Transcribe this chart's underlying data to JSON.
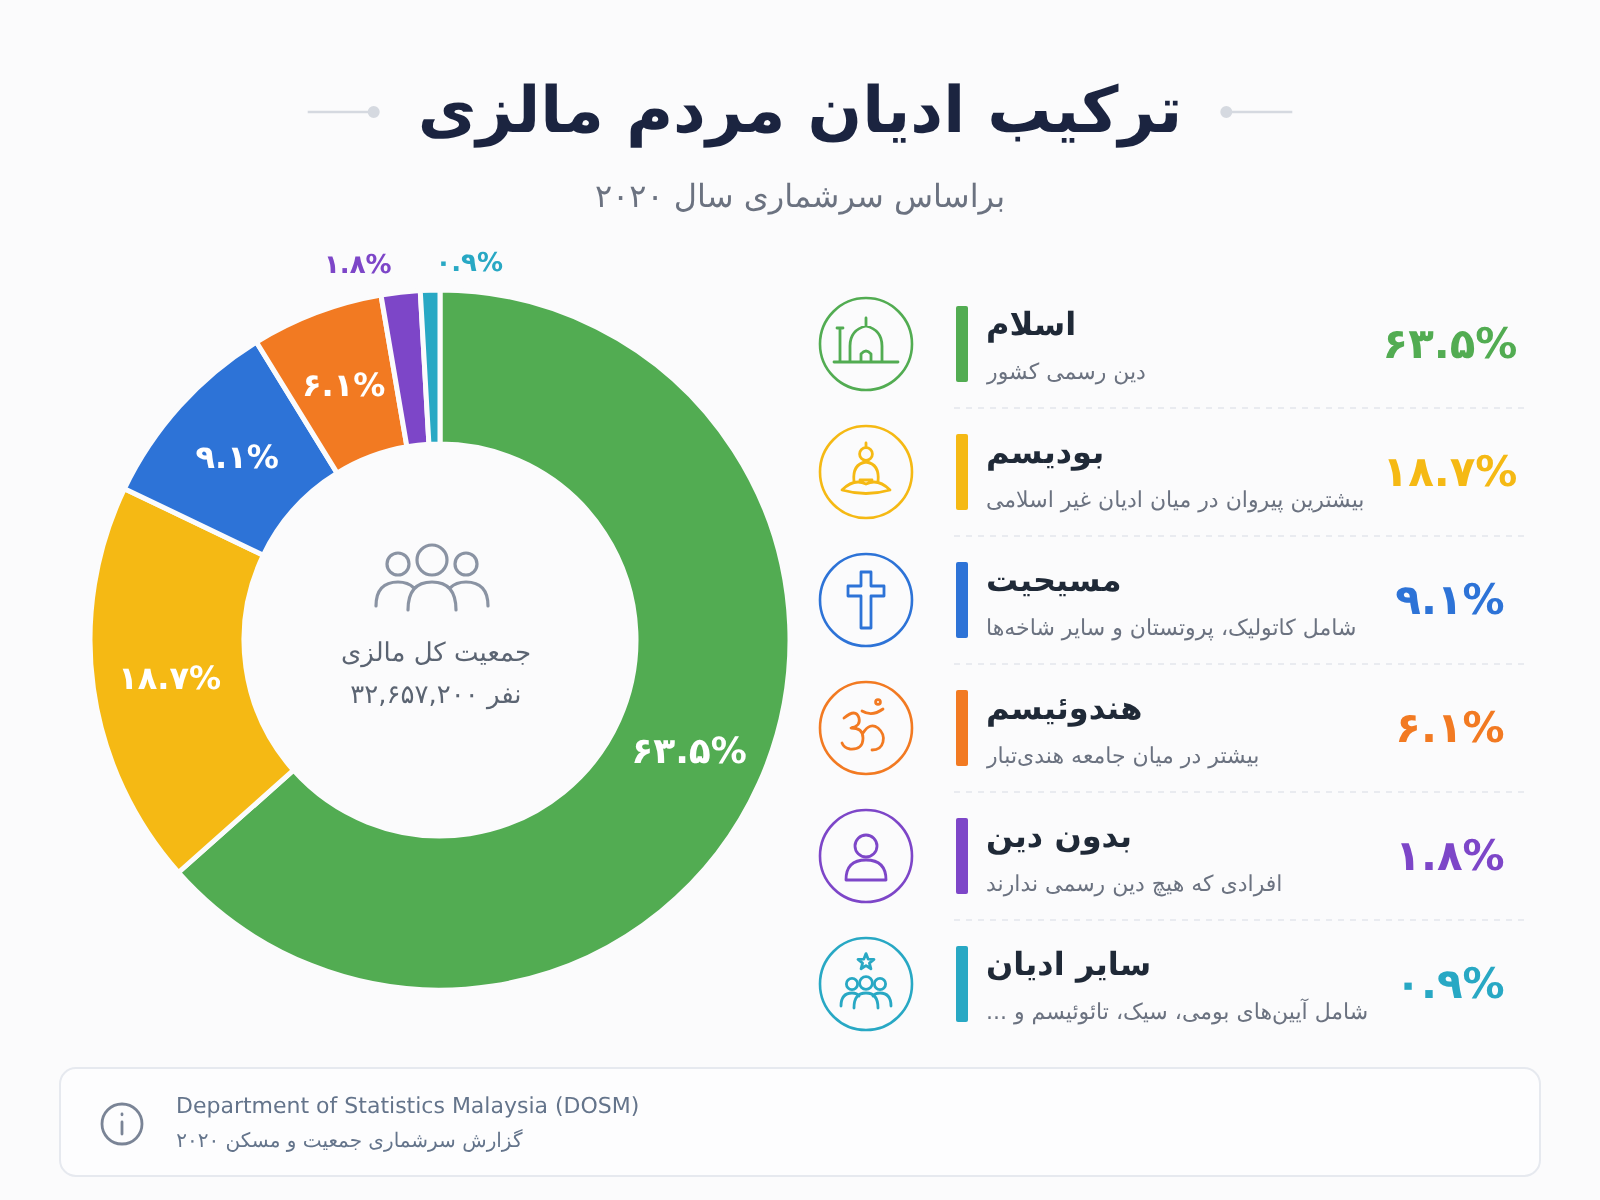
{
  "chart_data": {
    "type": "donut",
    "title": "ترکیب ادیان مردم مالزی",
    "subtitle": "براساس سرشماری سال ۲۰۲۰",
    "categories": [
      "اسلام",
      "بودیسم",
      "مسیحیت",
      "هندوئیسم",
      "بدون دین",
      "سایر ادیان"
    ],
    "values": [
      63.5,
      18.7,
      9.1,
      6.1,
      1.8,
      0.9
    ],
    "colors": [
      "#52ac52",
      "#f5b914",
      "#2d73d7",
      "#f27a22",
      "#7d46c8",
      "#28a8c4"
    ],
    "value_labels": [
      "۶۳.۵%",
      "۱۸.۷%",
      "۹.۱%",
      "۶.۱%",
      "۱.۸%",
      "۰.۹%"
    ],
    "legend": "right",
    "annotations": [
      "جمعیت کل مالزی",
      "۳۲,۶۵۷,۲۰۰ نفر",
      "دین رسمی کشور",
      "بیشترین پیروان در میان ادیان غیر اسلامی",
      "شامل کاتولیک، پروتستان و سایر شاخه‌ها",
      "بیشتر در میان جامعه هندی‌تبار",
      "افرادی که هیچ دین رسمی ندارند",
      "شامل آیین‌های بومی، سیک، تائوئیسم و ...",
      "Department of Statistics Malaysia (DOSM)",
      "گزارش سرشماری جمعیت و مسکن ۲۰۲۰"
    ]
  }
}
